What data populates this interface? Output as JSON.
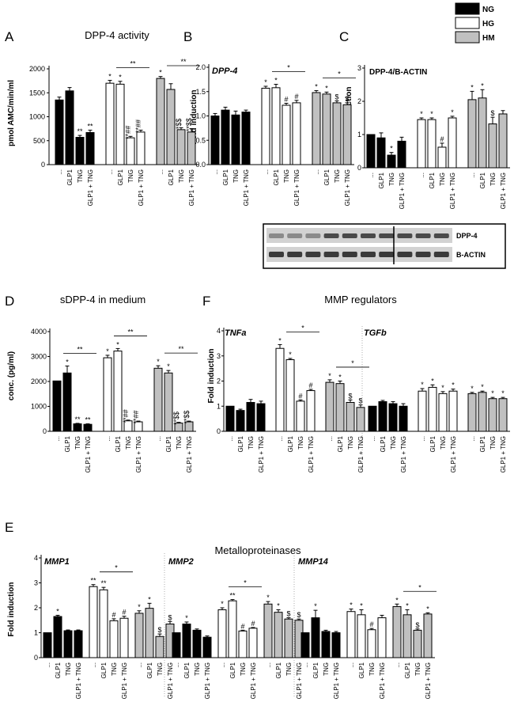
{
  "legend": [
    {
      "name": "NG",
      "color": "#000000"
    },
    {
      "name": "HG",
      "color": "#ffffff"
    },
    {
      "name": "HM",
      "color": "#c0c0c0"
    }
  ],
  "categories": [
    "...",
    "GLP1",
    "TNG",
    "GLP1 + TNG"
  ],
  "chart_data": [
    {
      "id": "A",
      "type": "bar",
      "panel": "A",
      "title": "DPP-4 activity",
      "ylabel": "pmol AMC/min/ml",
      "ylim": [
        0,
        2000
      ],
      "yticks": [
        0,
        500,
        1000,
        1500,
        2000
      ],
      "groups": [
        {
          "name": "NG",
          "values": [
            1350,
            1540,
            570,
            670
          ],
          "errors": [
            60,
            70,
            40,
            50
          ],
          "labels": [
            "",
            "",
            "**",
            "**"
          ]
        },
        {
          "name": "HG",
          "values": [
            1700,
            1680,
            560,
            680
          ],
          "errors": [
            60,
            60,
            30,
            40
          ],
          "labels": [
            "*",
            "*",
            "**##",
            "**##"
          ]
        },
        {
          "name": "HM",
          "values": [
            1800,
            1570,
            730,
            680
          ],
          "errors": [
            40,
            120,
            40,
            70
          ],
          "labels": [
            "*",
            "",
            "*$$",
            "**$$"
          ]
        }
      ],
      "brackets": [
        {
          "group": 1,
          "label": "**"
        },
        {
          "group": 2,
          "label": "**"
        }
      ]
    },
    {
      "id": "B",
      "type": "bar",
      "panel": "B",
      "title": "",
      "gene": "DPP-4",
      "ylabel": "Fold induction",
      "ylim": [
        0,
        2.0
      ],
      "yticks": [
        0.0,
        0.5,
        1.0,
        1.5,
        2.0
      ],
      "groups": [
        {
          "name": "NG",
          "values": [
            1.0,
            1.12,
            1.02,
            1.08
          ],
          "errors": [
            0.05,
            0.06,
            0.08,
            0.04
          ],
          "labels": [
            "",
            "",
            "",
            ""
          ]
        },
        {
          "name": "HG",
          "values": [
            1.57,
            1.58,
            1.22,
            1.27
          ],
          "errors": [
            0.04,
            0.07,
            0.04,
            0.05
          ],
          "labels": [
            "*",
            "*",
            "#",
            "#"
          ]
        },
        {
          "name": "HM",
          "values": [
            1.48,
            1.45,
            1.27,
            1.23
          ],
          "errors": [
            0.04,
            0.04,
            0.04,
            0.04
          ],
          "labels": [
            "*",
            "*",
            "$",
            "$"
          ]
        }
      ],
      "brackets": [
        {
          "group": 1,
          "label": "*"
        },
        {
          "group": 2,
          "label": "*"
        }
      ]
    },
    {
      "id": "C",
      "type": "bar",
      "panel": "C",
      "title": "",
      "gene": "DPP-4/B-ACTIN",
      "ylabel": "Fold induction",
      "ylim": [
        0,
        3
      ],
      "yticks": [
        0,
        1,
        2,
        3
      ],
      "groups": [
        {
          "name": "NG",
          "values": [
            1.0,
            0.9,
            0.38,
            0.8
          ],
          "errors": [
            0.0,
            0.15,
            0.08,
            0.12
          ],
          "labels": [
            "",
            "",
            "*",
            ""
          ]
        },
        {
          "name": "HG",
          "values": [
            1.45,
            1.45,
            0.62,
            1.5
          ],
          "errors": [
            0.05,
            0.05,
            0.12,
            0.05
          ],
          "labels": [
            "*",
            "*",
            "#",
            "*"
          ]
        },
        {
          "name": "HM",
          "values": [
            2.05,
            2.1,
            1.32,
            1.62
          ],
          "errors": [
            0.25,
            0.25,
            0.2,
            0.1
          ],
          "labels": [
            "*",
            "*",
            "$",
            ""
          ]
        }
      ],
      "brackets": []
    },
    {
      "id": "D",
      "type": "bar",
      "panel": "D",
      "title": "sDPP-4 in medium",
      "ylabel": "conc. (pg/ml)",
      "ylim": [
        0,
        4000
      ],
      "yticks": [
        0,
        1000,
        2000,
        3000,
        4000
      ],
      "groups": [
        {
          "name": "NG",
          "values": [
            2020,
            2340,
            300,
            280
          ],
          "errors": [
            0,
            280,
            20,
            20
          ],
          "labels": [
            "",
            "*",
            "**",
            "**"
          ]
        },
        {
          "name": "HG",
          "values": [
            2950,
            3220,
            420,
            380
          ],
          "errors": [
            100,
            100,
            30,
            30
          ],
          "labels": [
            "*",
            "*",
            "**##",
            "**##"
          ]
        },
        {
          "name": "HM",
          "values": [
            2530,
            2340,
            330,
            380
          ],
          "errors": [
            100,
            100,
            30,
            30
          ],
          "labels": [
            "*",
            "*",
            "**$$",
            "**$$"
          ]
        }
      ],
      "brackets": [
        {
          "group": 0,
          "label": "**"
        },
        {
          "group": 1,
          "label": "**"
        },
        {
          "group": 2,
          "label": "**"
        }
      ]
    },
    {
      "id": "F",
      "type": "bar",
      "panel": "F",
      "title": "MMP regulators",
      "ylabel": "Fold induction",
      "ylim": [
        0,
        4
      ],
      "yticks": [
        0,
        1,
        2,
        3,
        4
      ],
      "subpanels": [
        {
          "gene": "TNFa",
          "groups": [
            {
              "name": "NG",
              "values": [
                1.0,
                0.83,
                1.15,
                1.1
              ],
              "errors": [
                0,
                0.05,
                0.12,
                0.1
              ],
              "labels": [
                "",
                "",
                "",
                ""
              ]
            },
            {
              "name": "HG",
              "values": [
                3.3,
                2.85,
                1.2,
                1.62
              ],
              "errors": [
                0.15,
                0.05,
                0.05,
                0.05
              ],
              "labels": [
                "*",
                "*",
                "#",
                "#"
              ]
            },
            {
              "name": "HM",
              "values": [
                1.95,
                1.9,
                1.15,
                0.95
              ],
              "errors": [
                0.1,
                0.1,
                0.1,
                0.1
              ],
              "labels": [
                "*",
                "*",
                "$",
                "$"
              ]
            }
          ],
          "brackets": [
            {
              "group": 1,
              "label": "*"
            },
            {
              "group": 2,
              "label": "*"
            }
          ]
        },
        {
          "gene": "TGFb",
          "groups": [
            {
              "name": "NG",
              "values": [
                1.0,
                1.18,
                1.1,
                1.0
              ],
              "errors": [
                0,
                0.05,
                0.08,
                0.1
              ],
              "labels": [
                "",
                "",
                "",
                ""
              ]
            },
            {
              "name": "HG",
              "values": [
                1.6,
                1.75,
                1.5,
                1.6
              ],
              "errors": [
                0.1,
                0.1,
                0.08,
                0.08
              ],
              "labels": [
                "*",
                "*",
                "*",
                "*"
              ]
            },
            {
              "name": "HM",
              "values": [
                1.5,
                1.55,
                1.3,
                1.3
              ],
              "errors": [
                0.05,
                0.05,
                0.05,
                0.05
              ],
              "labels": [
                "*",
                "*",
                "*",
                "*"
              ]
            }
          ],
          "brackets": []
        }
      ]
    },
    {
      "id": "E",
      "type": "bar",
      "panel": "E",
      "title": "Metalloproteinases",
      "ylabel": "Fold induction",
      "ylim": [
        0,
        4
      ],
      "yticks": [
        0,
        1,
        2,
        3,
        4
      ],
      "subpanels": [
        {
          "gene": "MMP1",
          "groups": [
            {
              "name": "NG",
              "values": [
                1.0,
                1.65,
                1.08,
                1.08
              ],
              "errors": [
                0,
                0.05,
                0.03,
                0.03
              ],
              "labels": [
                "",
                "*",
                "",
                ""
              ]
            },
            {
              "name": "HG",
              "values": [
                2.85,
                2.72,
                1.48,
                1.58
              ],
              "errors": [
                0.08,
                0.1,
                0.08,
                0.08
              ],
              "labels": [
                "**",
                "**",
                "#",
                "#"
              ]
            },
            {
              "name": "HM",
              "values": [
                1.78,
                1.98,
                0.85,
                1.35
              ],
              "errors": [
                0.1,
                0.2,
                0.1,
                0.1
              ],
              "labels": [
                "*",
                "*",
                "$",
                "$"
              ]
            }
          ],
          "brackets": [
            {
              "group": 1,
              "label": "*"
            }
          ]
        },
        {
          "gene": "MMP2",
          "groups": [
            {
              "name": "NG",
              "values": [
                1.0,
                1.35,
                1.1,
                0.82
              ],
              "errors": [
                0,
                0.08,
                0.05,
                0.05
              ],
              "labels": [
                "",
                "*",
                "",
                ""
              ]
            },
            {
              "name": "HG",
              "values": [
                1.92,
                2.28,
                1.07,
                1.18
              ],
              "errors": [
                0.08,
                0.05,
                0.03,
                0.03
              ],
              "labels": [
                "*",
                "**",
                "#",
                "#"
              ]
            },
            {
              "name": "HM",
              "values": [
                2.15,
                1.82,
                1.55,
                1.5
              ],
              "errors": [
                0.1,
                0.1,
                0.05,
                0.05
              ],
              "labels": [
                "*",
                "*",
                "$",
                "$"
              ]
            }
          ],
          "brackets": [
            {
              "group": 1,
              "label": "*"
            }
          ]
        },
        {
          "gene": "MMP14",
          "groups": [
            {
              "name": "NG",
              "values": [
                1.0,
                1.6,
                1.05,
                1.0
              ],
              "errors": [
                0,
                0.3,
                0.05,
                0.05
              ],
              "labels": [
                "",
                "*",
                "",
                ""
              ]
            },
            {
              "name": "HG",
              "values": [
                1.85,
                1.72,
                1.12,
                1.6
              ],
              "errors": [
                0.1,
                0.2,
                0.05,
                0.1
              ],
              "labels": [
                "*",
                "*",
                "#",
                ""
              ]
            },
            {
              "name": "HM",
              "values": [
                2.05,
                1.72,
                1.1,
                1.75
              ],
              "errors": [
                0.1,
                0.2,
                0.05,
                0.05
              ],
              "labels": [
                "*",
                "*",
                "$",
                "*"
              ]
            }
          ],
          "brackets": [
            {
              "group": 2,
              "label": "*"
            }
          ]
        }
      ]
    }
  ],
  "blot": {
    "labels": [
      "DPP-4",
      "B-ACTIN"
    ],
    "lanes": 10
  }
}
